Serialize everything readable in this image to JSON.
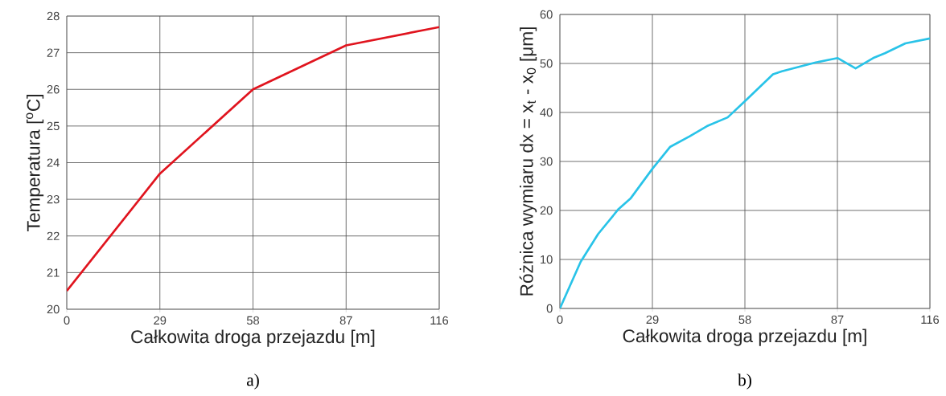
{
  "chart_data": [
    {
      "type": "line",
      "xlabel": "Całkowita droga przejazdu [m]",
      "ylabel": "Temperatura [$^{o}$C]",
      "annotations": [
        "a)"
      ],
      "series": [
        {
          "color": "#e0141e",
          "x": [
            0,
            29,
            58,
            87,
            116
          ],
          "values": [
            20.5,
            23.7,
            26.0,
            27.2,
            27.7
          ]
        }
      ],
      "xlim": [
        0,
        116
      ],
      "ylim": [
        20,
        28
      ],
      "xticks": [
        0,
        29,
        58,
        87,
        116
      ],
      "yticks": [
        20,
        21,
        22,
        23,
        24,
        25,
        26,
        27,
        28
      ],
      "grid": true,
      "marker": "none",
      "line_style": "solid"
    },
    {
      "type": "line",
      "xlabel": "Całkowita droga przejazdu [m]",
      "ylabel": "Różnica wymiaru dx = x$_{t}$ - x$_{0}$ [μm]",
      "annotations": [
        "b)"
      ],
      "series": [
        {
          "color": "#29c3e8",
          "x": [
            0,
            6.5,
            12,
            18.4,
            22.1,
            29,
            34.6,
            40.6,
            46.1,
            52.6,
            58,
            66.8,
            69.6,
            80.2,
            87.1,
            92.7,
            98.2,
            101.9,
            108.3,
            116
          ],
          "values": [
            0,
            9.5,
            15.2,
            20.3,
            22.4,
            28.5,
            33,
            35.1,
            37.2,
            39,
            42.3,
            47.8,
            48.4,
            50.2,
            51.1,
            49,
            51.1,
            52.1,
            54.1,
            55.1
          ]
        }
      ],
      "xlim": [
        0,
        116
      ],
      "ylim": [
        0,
        60
      ],
      "xticks": [
        0,
        29,
        58,
        87,
        116
      ],
      "yticks": [
        0,
        10,
        20,
        30,
        40,
        50,
        60
      ],
      "grid": true,
      "marker": "none",
      "line_style": "solid"
    }
  ]
}
